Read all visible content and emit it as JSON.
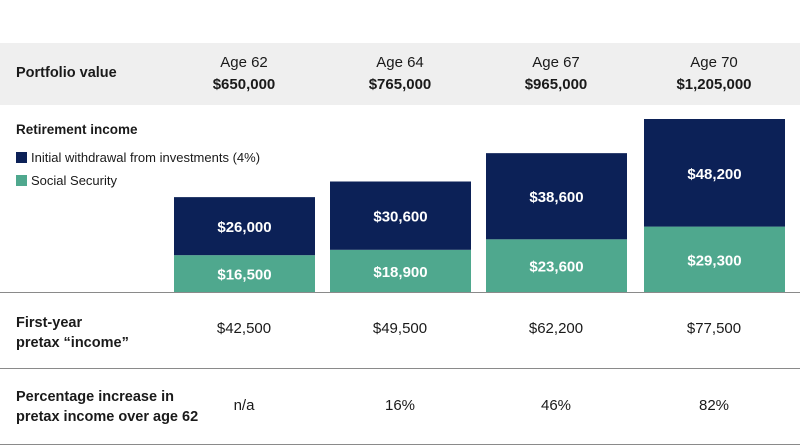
{
  "header": {
    "portfolio_label": "Portfolio value",
    "columns": [
      {
        "age": "Age 62",
        "value": "$650,000"
      },
      {
        "age": "Age 64",
        "value": "$765,000"
      },
      {
        "age": "Age 67",
        "value": "$965,000"
      },
      {
        "age": "Age 70",
        "value": "$1,205,000"
      }
    ]
  },
  "legend": {
    "title": "Retirement income",
    "items": [
      {
        "label": "Initial withdrawal from investments (4%)",
        "color": "#0c2157"
      },
      {
        "label": "Social Security",
        "color": "#4fa88e"
      }
    ]
  },
  "rows": {
    "first_year_label_line1": "First-year",
    "first_year_label_line2": "pretax “income”",
    "first_year_values": [
      "$42,500",
      "$49,500",
      "$62,200",
      "$77,500"
    ],
    "pct_label_line1": "Percentage increase in",
    "pct_label_line2": "pretax income over age 62",
    "pct_values": [
      "n/a",
      "16%",
      "46%",
      "82%"
    ]
  },
  "chart_data": {
    "type": "bar",
    "stacked": true,
    "categories": [
      "Age 62",
      "Age 64",
      "Age 67",
      "Age 70"
    ],
    "series": [
      {
        "name": "Social Security",
        "values": [
          16500,
          18900,
          23600,
          29300
        ],
        "labels": [
          "$16,500",
          "$18,900",
          "$23,600",
          "$29,300"
        ],
        "color": "#4fa88e"
      },
      {
        "name": "Initial withdrawal from investments (4%)",
        "values": [
          26000,
          30600,
          38600,
          48200
        ],
        "labels": [
          "$26,000",
          "$30,600",
          "$38,600",
          "$48,200"
        ],
        "color": "#0c2157"
      }
    ],
    "ylim": [
      0,
      80000
    ]
  }
}
